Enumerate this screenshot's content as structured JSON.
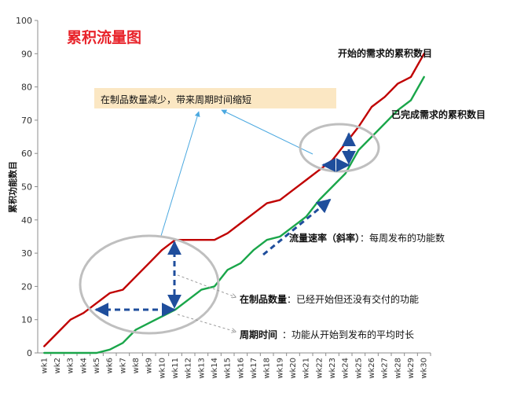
{
  "chart_data": {
    "type": "line",
    "title": "累积流量图",
    "ylabel": "累积功能数目",
    "xlabel": "",
    "ylim": [
      0,
      100
    ],
    "yticks": [
      0,
      10,
      20,
      30,
      40,
      50,
      60,
      70,
      80,
      90,
      100
    ],
    "categories": [
      "wk1",
      "wk2",
      "wk3",
      "wk4",
      "wk5",
      "wk6",
      "wk7",
      "wk8",
      "wk9",
      "wk10",
      "wk11",
      "wk12",
      "wk13",
      "wk14",
      "wk15",
      "wk16",
      "wk17",
      "wk18",
      "wk19",
      "wk20",
      "wk21",
      "wk22",
      "wk23",
      "wk24",
      "wk25",
      "wk26",
      "wk27",
      "wk28",
      "wk29",
      "wk30"
    ],
    "series": [
      {
        "name": "开始的需求的累积数目",
        "color": "#c00000",
        "values": [
          2,
          6,
          10,
          12,
          15,
          18,
          19,
          23,
          27,
          31,
          34,
          34,
          34,
          34,
          36,
          39,
          42,
          45,
          46,
          49,
          52,
          55,
          58,
          63,
          68,
          74,
          77,
          81,
          83,
          90
        ]
      },
      {
        "name": "已完成需求的累积数目",
        "color": "#1aa64a",
        "values": [
          0,
          0,
          0,
          0,
          0,
          1,
          3,
          7,
          9,
          11,
          13,
          16,
          19,
          20,
          25,
          27,
          31,
          34,
          35,
          38,
          41,
          46,
          50,
          54,
          61,
          65,
          69,
          73,
          76,
          83
        ]
      }
    ],
    "grid": false,
    "legend": "inline-labels",
    "annotations": {
      "wip_reduce": "在制品数量减少，带来周期时间缩短",
      "rate_bold": "流量速率（斜率）",
      "rate_text": "：每周发布的功能数",
      "wip_bold": "在制品数量",
      "wip_text": "：已经开始但还没有交付的功能",
      "cycle_bold": "周期时间",
      "cycle_text": "：功能从开始到发布的平均时长"
    }
  }
}
